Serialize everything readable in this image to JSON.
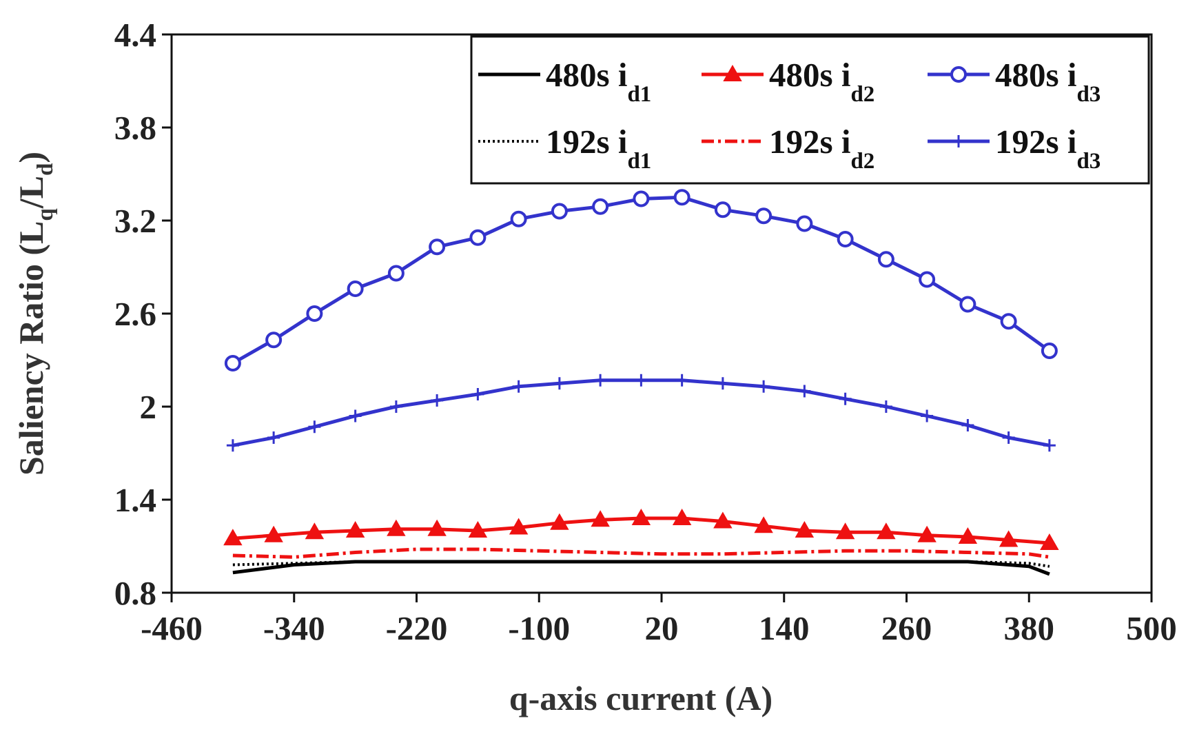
{
  "chart_data": {
    "type": "line",
    "title": "",
    "xlabel": "q-axis current (A)",
    "ylabel": {
      "main": "Saliency Ratio (L",
      "sub1": "q",
      "mid": "/L",
      "sub2": "d",
      "end": ")"
    },
    "xlim": [
      -460,
      500
    ],
    "ylim": [
      0.8,
      4.4
    ],
    "xticks": [
      "-460",
      "-340",
      "-220",
      "-100",
      "20",
      "140",
      "260",
      "380",
      "500"
    ],
    "yticks": [
      "0.8",
      "1.4",
      "2",
      "2.6",
      "3.2",
      "3.8",
      "4.4"
    ],
    "xtick_values": [
      -460,
      -340,
      -220,
      -100,
      20,
      140,
      260,
      380,
      500
    ],
    "ytick_values": [
      0.8,
      1.4,
      2.0,
      2.6,
      3.2,
      3.8,
      4.4
    ],
    "x": [
      -400,
      -340,
      -280,
      -220,
      -160,
      -100,
      -40,
      20,
      80,
      140,
      200,
      260,
      320,
      380,
      420
    ],
    "x_dense": [
      -400,
      -360,
      -320,
      -280,
      -240,
      -200,
      -160,
      -120,
      -80,
      -40,
      0,
      40,
      80,
      120,
      160,
      200,
      240,
      280,
      320,
      360,
      400
    ],
    "legend_position": "top-right",
    "series": [
      {
        "name": "480s i",
        "sub": "d1",
        "color": "#000000",
        "style": "solid",
        "marker": "none",
        "x": [
          -400,
          -340,
          -280,
          -220,
          -160,
          -100,
          -40,
          20,
          80,
          140,
          200,
          260,
          320,
          380,
          400
        ],
        "values": [
          0.93,
          0.98,
          1.0,
          1.0,
          1.0,
          1.0,
          1.0,
          1.0,
          1.0,
          1.0,
          1.0,
          1.0,
          1.0,
          0.97,
          0.92
        ]
      },
      {
        "name": "480s i",
        "sub": "d2",
        "color": "#ee1111",
        "style": "solid",
        "marker": "triangle",
        "x": [
          -400,
          -360,
          -320,
          -280,
          -240,
          -200,
          -160,
          -120,
          -80,
          -40,
          0,
          40,
          80,
          120,
          160,
          200,
          240,
          280,
          320,
          360,
          400
        ],
        "values": [
          1.15,
          1.17,
          1.19,
          1.2,
          1.21,
          1.21,
          1.2,
          1.22,
          1.25,
          1.27,
          1.28,
          1.28,
          1.26,
          1.23,
          1.2,
          1.19,
          1.19,
          1.17,
          1.16,
          1.14,
          1.12
        ]
      },
      {
        "name": "480s i",
        "sub": "d3",
        "color": "#3333cc",
        "style": "solid",
        "marker": "circle",
        "x": [
          -400,
          -360,
          -320,
          -280,
          -240,
          -200,
          -160,
          -120,
          -80,
          -40,
          0,
          40,
          80,
          120,
          160,
          200,
          240,
          280,
          320,
          360,
          400
        ],
        "values": [
          2.28,
          2.43,
          2.6,
          2.76,
          2.86,
          3.03,
          3.09,
          3.21,
          3.26,
          3.29,
          3.34,
          3.35,
          3.27,
          3.23,
          3.18,
          3.08,
          2.95,
          2.82,
          2.66,
          2.55,
          2.36
        ]
      },
      {
        "name": "192s i",
        "sub": "d1",
        "color": "#000000",
        "style": "dotted",
        "marker": "none",
        "x": [
          -400,
          -340,
          -280,
          -220,
          -160,
          -100,
          -40,
          20,
          80,
          140,
          200,
          260,
          320,
          380,
          400
        ],
        "values": [
          0.98,
          0.99,
          1.0,
          1.0,
          1.0,
          1.0,
          1.0,
          1.0,
          1.0,
          1.0,
          1.0,
          1.0,
          1.0,
          0.99,
          0.97
        ]
      },
      {
        "name": "192s i",
        "sub": "d2",
        "color": "#ee1111",
        "style": "dashdot",
        "marker": "none",
        "x": [
          -400,
          -340,
          -280,
          -220,
          -160,
          -100,
          -40,
          20,
          80,
          140,
          200,
          260,
          320,
          380,
          400
        ],
        "values": [
          1.04,
          1.03,
          1.06,
          1.08,
          1.08,
          1.07,
          1.06,
          1.05,
          1.05,
          1.06,
          1.07,
          1.07,
          1.06,
          1.05,
          1.03
        ]
      },
      {
        "name": "192s i",
        "sub": "d3",
        "color": "#3333cc",
        "style": "solid",
        "marker": "plus",
        "x": [
          -400,
          -360,
          -320,
          -280,
          -240,
          -200,
          -160,
          -120,
          -80,
          -40,
          0,
          40,
          80,
          120,
          160,
          200,
          240,
          280,
          320,
          360,
          400
        ],
        "values": [
          1.75,
          1.8,
          1.87,
          1.94,
          2.0,
          2.04,
          2.08,
          2.13,
          2.15,
          2.17,
          2.17,
          2.17,
          2.15,
          2.13,
          2.1,
          2.05,
          2.0,
          1.94,
          1.88,
          1.8,
          1.75
        ]
      }
    ]
  }
}
